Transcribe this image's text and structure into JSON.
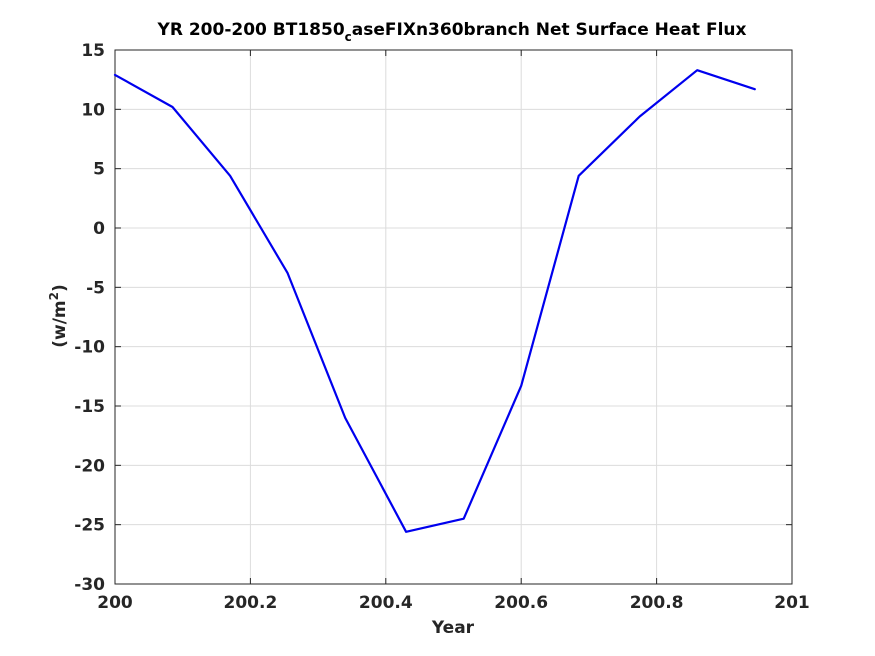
{
  "chart_data": {
    "type": "line",
    "title": {
      "prefix": "YR 200-200 BT1850",
      "subscript": "c",
      "suffix": "aseFIXn360branch Net Surface Heat Flux"
    },
    "xlabel": "Year",
    "ylabel": {
      "text": "(w/m",
      "superscript": "2",
      "close": ")"
    },
    "xlim": [
      200,
      201
    ],
    "ylim": [
      -30,
      15
    ],
    "xticks": [
      200,
      200.2,
      200.4,
      200.6,
      200.8,
      201
    ],
    "xtick_labels": [
      "200",
      "200.2",
      "200.4",
      "200.6",
      "200.8",
      "201"
    ],
    "yticks": [
      15,
      10,
      5,
      0,
      -5,
      -10,
      -15,
      -20,
      -25,
      -30
    ],
    "ytick_labels": [
      "15",
      "10",
      "5",
      "0",
      "-5",
      "-10",
      "-15",
      "-20",
      "-25",
      "-30"
    ],
    "grid": true,
    "series": [
      {
        "color": "#0000ee",
        "x": [
          200.0,
          200.085,
          200.17,
          200.255,
          200.34,
          200.43,
          200.515,
          200.6,
          200.685,
          200.775,
          200.86,
          200.945
        ],
        "y": [
          12.9,
          10.2,
          4.4,
          -3.8,
          -16.0,
          -25.6,
          -24.5,
          -13.3,
          4.4,
          9.4,
          13.3,
          11.7
        ]
      }
    ]
  }
}
